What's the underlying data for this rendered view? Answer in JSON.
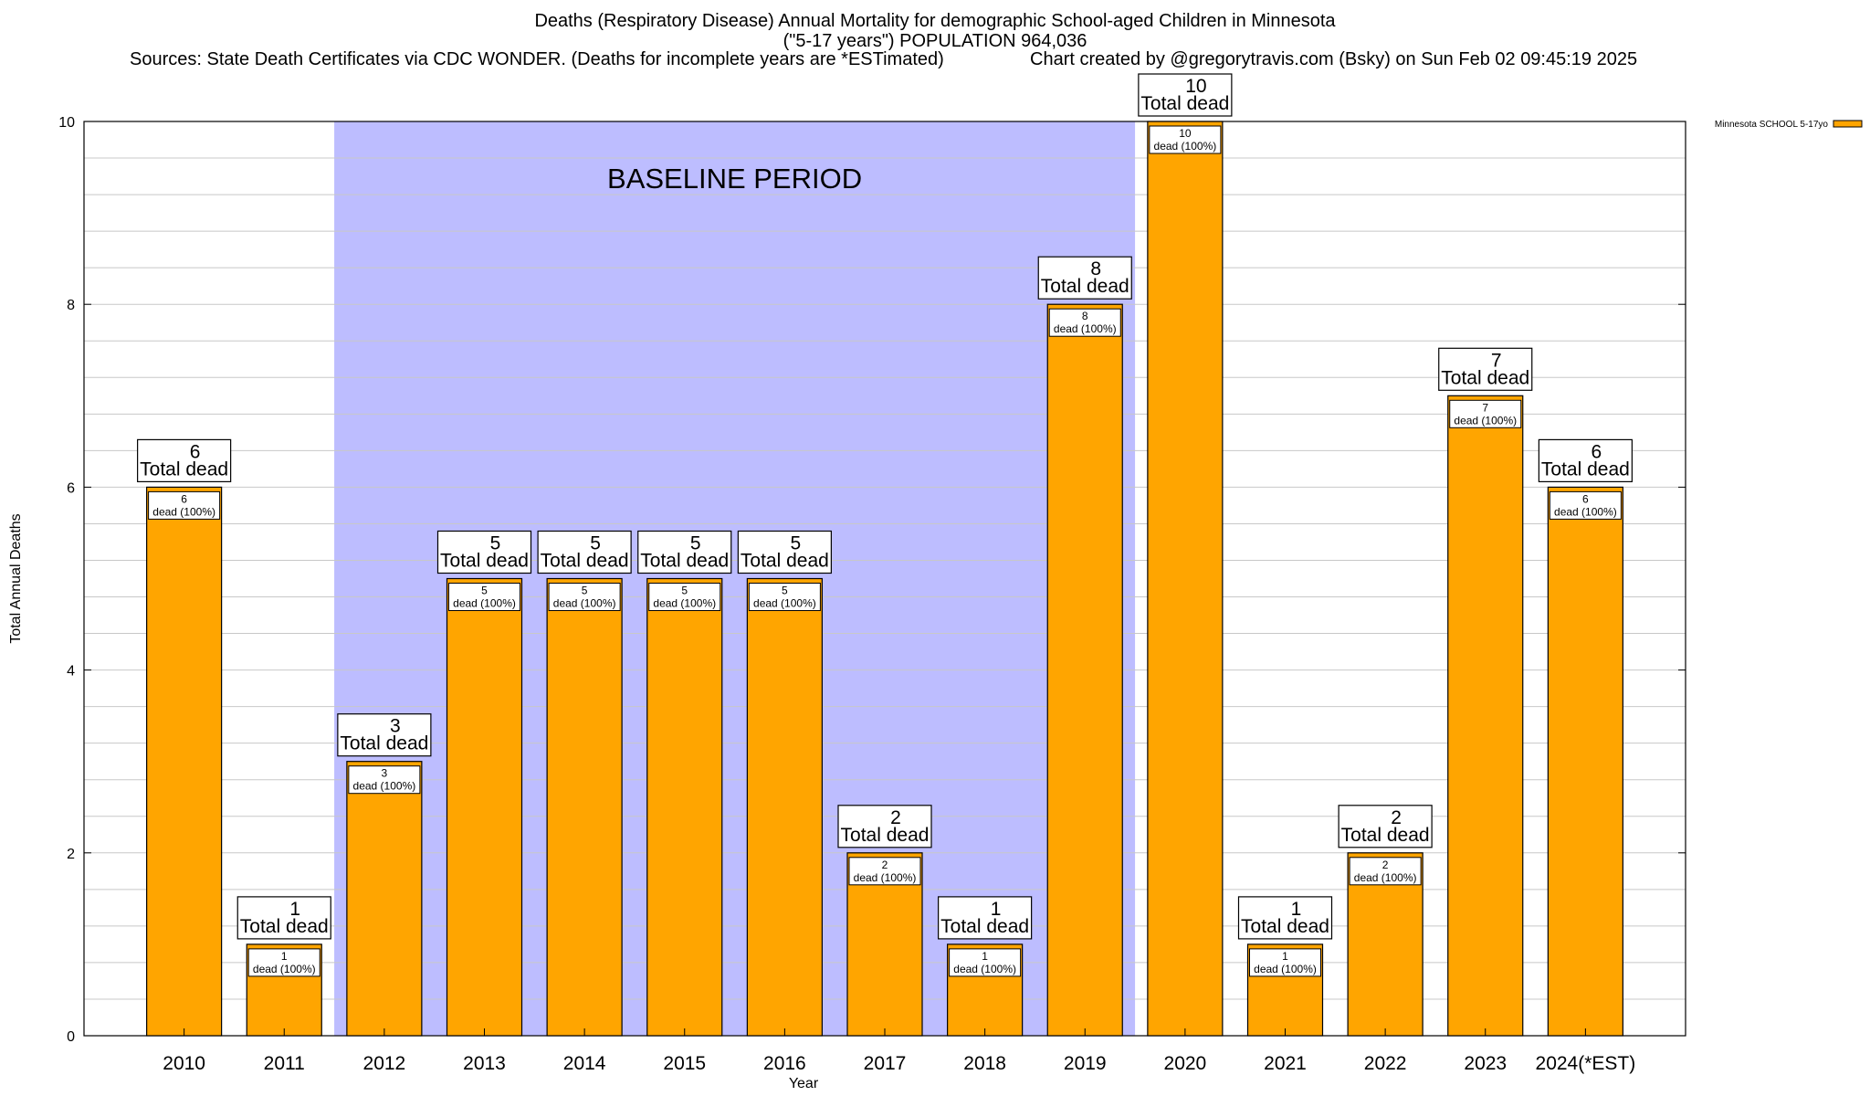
{
  "header": {
    "title": "Deaths (Respiratory Disease) Annual Mortality for demographic School-aged Children in Minnesota",
    "subtitle": "(\"5-17 years\") POPULATION 964,036",
    "sources": "Sources: State Death Certificates via CDC WONDER. (Deaths for incomplete years are *ESTimated)",
    "credit": "Chart created by @gregorytravis.com (Bsky) on Sun Feb 02 09:45:19 2025"
  },
  "chart_data": {
    "type": "bar",
    "title": "Deaths (Respiratory Disease) Annual Mortality for demographic School-aged Children in Minnesota",
    "xlabel": "Year",
    "ylabel": "Total Annual Deaths",
    "ylim": [
      0,
      10
    ],
    "yticks": [
      0,
      2,
      4,
      6,
      8,
      10
    ],
    "grid": true,
    "legend_position": "top-right",
    "categories": [
      "2010",
      "2011",
      "2012",
      "2013",
      "2014",
      "2015",
      "2016",
      "2017",
      "2018",
      "2019",
      "2020",
      "2021",
      "2022",
      "2023",
      "2024(*EST)"
    ],
    "series": [
      {
        "name": "Minnesota SCHOOL 5-17yo",
        "color": "#FFA500",
        "values": [
          6,
          1,
          3,
          5,
          5,
          5,
          5,
          2,
          1,
          8,
          10,
          1,
          2,
          7,
          6
        ]
      }
    ],
    "total_label": "Total dead",
    "inner_label_suffix": "dead (100%)",
    "annotation": {
      "text": "BASELINE PERIOD",
      "x_start": "2012",
      "x_end": "2019",
      "color": "#BDBDFF"
    }
  }
}
